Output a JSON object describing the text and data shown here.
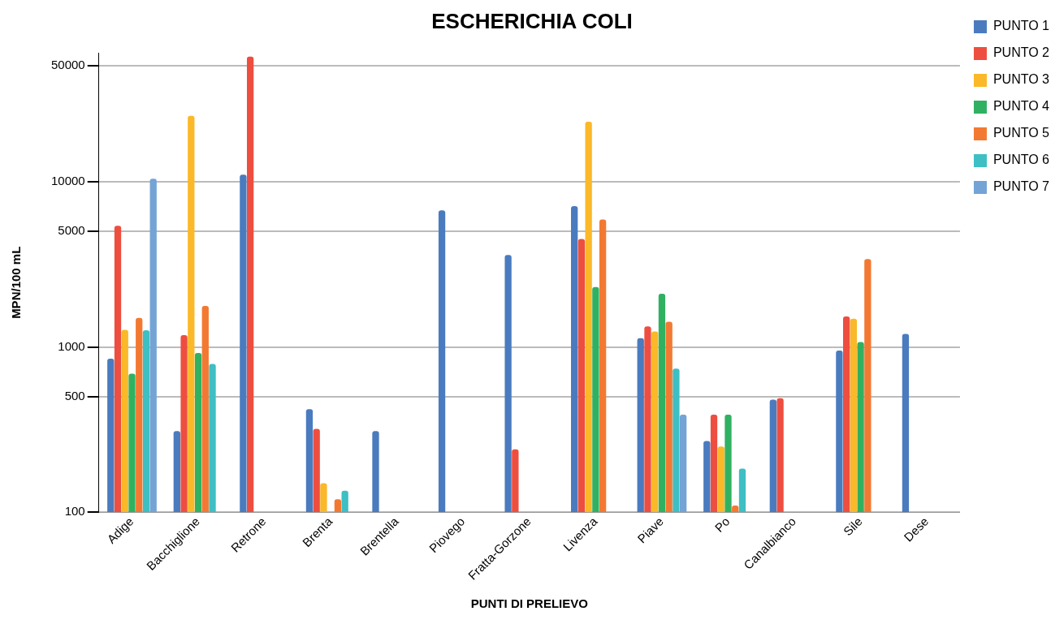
{
  "chart_data": {
    "type": "bar",
    "title": "ESCHERICHIA COLI",
    "xlabel": "PUNTI DI PRELIEVO",
    "ylabel": "MPN/100 mL",
    "categories": [
      "Adige",
      "Bacchiglione",
      "Retrone",
      "Brenta",
      "Brentella",
      "Piovego",
      "Fratta-Gorzone",
      "Livenza",
      "Piave",
      "Po",
      "Canalbianco",
      "Sile",
      "Dese"
    ],
    "series": [
      {
        "name": "PUNTO 1",
        "color": "#4a7bbf",
        "values": [
          850,
          310,
          11000,
          420,
          310,
          6700,
          3600,
          7100,
          1130,
          270,
          480,
          950,
          1200
        ]
      },
      {
        "name": "PUNTO 2",
        "color": "#ee4e3f",
        "values": [
          5400,
          1180,
          57000,
          320,
          null,
          null,
          240,
          4500,
          1330,
          390,
          490,
          1530,
          null
        ]
      },
      {
        "name": "PUNTO 3",
        "color": "#fbb828",
        "values": [
          1270,
          25000,
          null,
          150,
          null,
          null,
          null,
          23000,
          1240,
          250,
          null,
          1480,
          null
        ]
      },
      {
        "name": "PUNTO 4",
        "color": "#30b162",
        "values": [
          690,
          920,
          null,
          null,
          null,
          null,
          null,
          2300,
          2100,
          390,
          null,
          1070,
          null
        ]
      },
      {
        "name": "PUNTO 5",
        "color": "#f37932",
        "values": [
          1500,
          1770,
          null,
          120,
          null,
          null,
          null,
          5900,
          1420,
          110,
          null,
          3400,
          null
        ]
      },
      {
        "name": "PUNTO 6",
        "color": "#3dbfc4",
        "values": [
          1260,
          790,
          null,
          135,
          null,
          null,
          null,
          null,
          740,
          184,
          null,
          null,
          null
        ]
      },
      {
        "name": "PUNTO 7",
        "color": "#74a3d6",
        "values": [
          10400,
          null,
          null,
          null,
          null,
          null,
          null,
          null,
          390,
          null,
          null,
          null,
          null
        ]
      }
    ],
    "log": "y",
    "ylim": [
      100,
      60000
    ],
    "yticks": [
      100,
      500,
      1000,
      5000,
      10000,
      50000
    ],
    "grid": "y",
    "legend": "top right"
  }
}
